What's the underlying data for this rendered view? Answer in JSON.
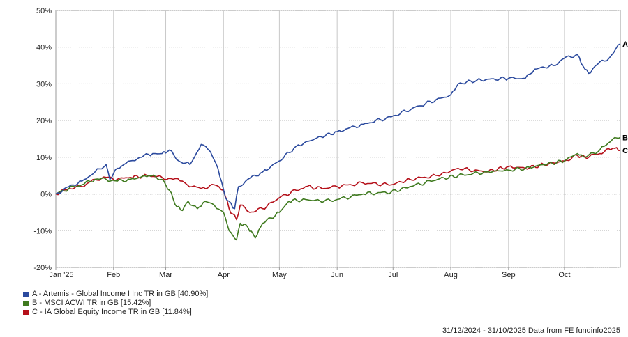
{
  "chart_data": {
    "type": "line",
    "yaxis": {
      "ylim": [
        -20,
        50
      ],
      "ticks": [
        -20,
        -10,
        0,
        10,
        20,
        30,
        40,
        50
      ],
      "tick_suffix": "%"
    },
    "xaxis": {
      "range": [
        "2025-01-01",
        "2025-10-31"
      ],
      "ticks": [
        {
          "date": "2025-01-01",
          "label": "Jan '25"
        },
        {
          "date": "2025-02-01",
          "label": "Feb"
        },
        {
          "date": "2025-03-01",
          "label": "Mar"
        },
        {
          "date": "2025-04-01",
          "label": "Apr"
        },
        {
          "date": "2025-05-01",
          "label": "May"
        },
        {
          "date": "2025-06-01",
          "label": "Jun"
        },
        {
          "date": "2025-07-01",
          "label": "Jul"
        },
        {
          "date": "2025-08-01",
          "label": "Aug"
        },
        {
          "date": "2025-09-01",
          "label": "Sep"
        },
        {
          "date": "2025-10-01",
          "label": "Oct"
        }
      ]
    },
    "grid": true,
    "zero_line": "dotted",
    "series": [
      {
        "name": "A - Artemis - Global Income I Inc TR in GB [40.90%]",
        "end_label": "A",
        "color": "#2b4a9e",
        "points": [
          [
            "2025-01-01",
            0
          ],
          [
            "2025-01-08",
            2
          ],
          [
            "2025-01-15",
            3.5
          ],
          [
            "2025-01-22",
            6
          ],
          [
            "2025-01-28",
            8
          ],
          [
            "2025-01-30",
            4
          ],
          [
            "2025-02-03",
            7
          ],
          [
            "2025-02-10",
            9
          ],
          [
            "2025-02-15",
            10
          ],
          [
            "2025-02-22",
            11
          ],
          [
            "2025-02-27",
            11
          ],
          [
            "2025-03-03",
            12
          ],
          [
            "2025-03-08",
            9
          ],
          [
            "2025-03-14",
            8
          ],
          [
            "2025-03-20",
            13.5
          ],
          [
            "2025-03-25",
            11.5
          ],
          [
            "2025-03-29",
            7
          ],
          [
            "2025-04-02",
            -1
          ],
          [
            "2025-04-04",
            -2
          ],
          [
            "2025-04-07",
            -4
          ],
          [
            "2025-04-09",
            2
          ],
          [
            "2025-04-14",
            4
          ],
          [
            "2025-04-22",
            6
          ],
          [
            "2025-05-01",
            9
          ],
          [
            "2025-05-10",
            13
          ],
          [
            "2025-05-20",
            15
          ],
          [
            "2025-06-01",
            17
          ],
          [
            "2025-06-15",
            19
          ],
          [
            "2025-06-30",
            21
          ],
          [
            "2025-07-15",
            24
          ],
          [
            "2025-08-01",
            27
          ],
          [
            "2025-08-05",
            30
          ],
          [
            "2025-08-15",
            31
          ],
          [
            "2025-09-01",
            31.5
          ],
          [
            "2025-09-10",
            31.5
          ],
          [
            "2025-09-15",
            34
          ],
          [
            "2025-09-25",
            35
          ],
          [
            "2025-10-01",
            37
          ],
          [
            "2025-10-08",
            38
          ],
          [
            "2025-10-12",
            34
          ],
          [
            "2025-10-15",
            33
          ],
          [
            "2025-10-20",
            36
          ],
          [
            "2025-10-25",
            37
          ],
          [
            "2025-10-31",
            40.9
          ]
        ]
      },
      {
        "name": "B - MSCI ACWI TR in GB [15.42%]",
        "end_label": "B",
        "color": "#3f7a1f",
        "points": [
          [
            "2025-01-01",
            0
          ],
          [
            "2025-01-08",
            1.5
          ],
          [
            "2025-01-15",
            2.5
          ],
          [
            "2025-01-22",
            4
          ],
          [
            "2025-01-28",
            4
          ],
          [
            "2025-02-03",
            3.5
          ],
          [
            "2025-02-10",
            4
          ],
          [
            "2025-02-20",
            5
          ],
          [
            "2025-02-27",
            4
          ],
          [
            "2025-03-03",
            1
          ],
          [
            "2025-03-07",
            -3.5
          ],
          [
            "2025-03-10",
            -4.5
          ],
          [
            "2025-03-13",
            -2
          ],
          [
            "2025-03-18",
            -4
          ],
          [
            "2025-03-22",
            -2
          ],
          [
            "2025-03-27",
            -3
          ],
          [
            "2025-04-01",
            -5
          ],
          [
            "2025-04-04",
            -10
          ],
          [
            "2025-04-08",
            -12.5
          ],
          [
            "2025-04-10",
            -8
          ],
          [
            "2025-04-14",
            -9
          ],
          [
            "2025-04-18",
            -12
          ],
          [
            "2025-04-22",
            -8
          ],
          [
            "2025-05-01",
            -5
          ],
          [
            "2025-05-06",
            -2
          ],
          [
            "2025-05-15",
            -1.5
          ],
          [
            "2025-05-25",
            -2
          ],
          [
            "2025-06-01",
            -1.5
          ],
          [
            "2025-06-15",
            0
          ],
          [
            "2025-06-30",
            0.5
          ],
          [
            "2025-07-10",
            2
          ],
          [
            "2025-07-25",
            4
          ],
          [
            "2025-08-05",
            5
          ],
          [
            "2025-08-20",
            6
          ],
          [
            "2025-09-01",
            6.5
          ],
          [
            "2025-09-10",
            7
          ],
          [
            "2025-09-20",
            8
          ],
          [
            "2025-10-01",
            9
          ],
          [
            "2025-10-08",
            11
          ],
          [
            "2025-10-12",
            10
          ],
          [
            "2025-10-20",
            12
          ],
          [
            "2025-10-27",
            15
          ],
          [
            "2025-10-31",
            15.42
          ]
        ]
      },
      {
        "name": "C - IA Global Equity Income TR in GB [11.84%]",
        "end_label": "C",
        "color": "#b5101a",
        "points": [
          [
            "2025-01-01",
            0
          ],
          [
            "2025-01-08",
            1.5
          ],
          [
            "2025-01-15",
            2
          ],
          [
            "2025-01-22",
            4
          ],
          [
            "2025-01-28",
            4.5
          ],
          [
            "2025-02-03",
            4
          ],
          [
            "2025-02-10",
            4.5
          ],
          [
            "2025-02-20",
            5
          ],
          [
            "2025-02-27",
            4.5
          ],
          [
            "2025-03-05",
            4
          ],
          [
            "2025-03-10",
            3.5
          ],
          [
            "2025-03-15",
            2
          ],
          [
            "2025-03-20",
            1.5
          ],
          [
            "2025-03-27",
            2.5
          ],
          [
            "2025-04-01",
            1
          ],
          [
            "2025-04-04",
            -4
          ],
          [
            "2025-04-08",
            -7
          ],
          [
            "2025-04-10",
            -3
          ],
          [
            "2025-04-15",
            -5
          ],
          [
            "2025-04-22",
            -4
          ],
          [
            "2025-05-01",
            -1
          ],
          [
            "2025-05-10",
            1
          ],
          [
            "2025-05-15",
            2
          ],
          [
            "2025-05-25",
            1.5
          ],
          [
            "2025-06-01",
            2
          ],
          [
            "2025-06-15",
            3
          ],
          [
            "2025-06-30",
            2.5
          ],
          [
            "2025-07-10",
            4
          ],
          [
            "2025-07-25",
            5
          ],
          [
            "2025-08-05",
            7
          ],
          [
            "2025-08-20",
            6
          ],
          [
            "2025-09-01",
            7.5
          ],
          [
            "2025-09-10",
            7
          ],
          [
            "2025-09-20",
            8
          ],
          [
            "2025-10-01",
            9
          ],
          [
            "2025-10-08",
            10.5
          ],
          [
            "2025-10-12",
            10
          ],
          [
            "2025-10-20",
            11
          ],
          [
            "2025-10-27",
            12.5
          ],
          [
            "2025-10-31",
            11.84
          ]
        ]
      }
    ],
    "footer": "31/12/2024 - 31/10/2025 Data from FE fundinfo2025"
  }
}
